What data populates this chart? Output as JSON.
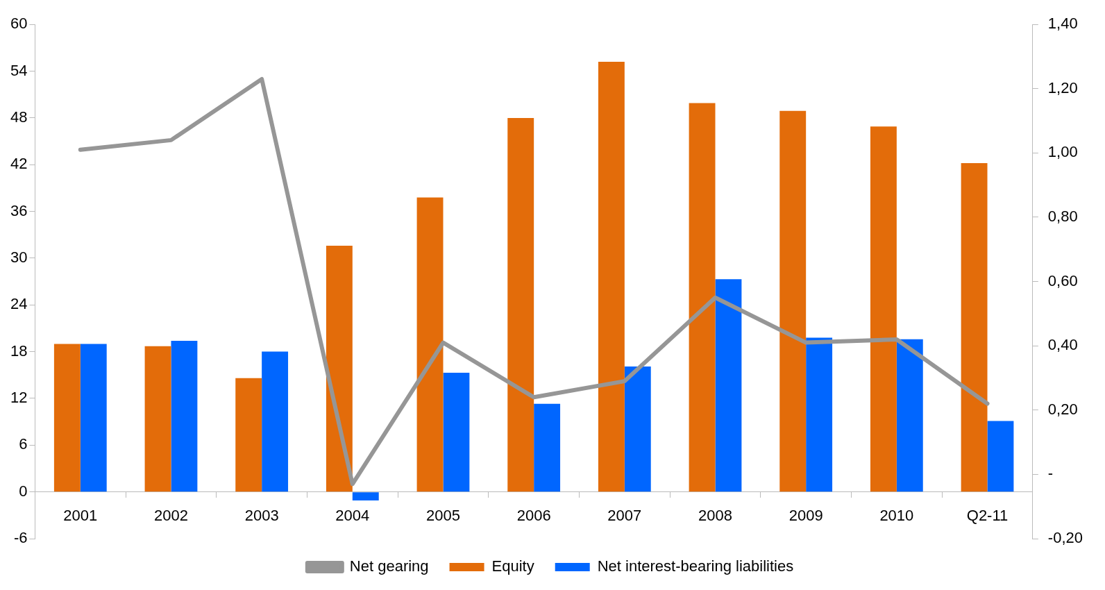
{
  "chart_data": {
    "type": "bar",
    "categories": [
      "2001",
      "2002",
      "2003",
      "2004",
      "2005",
      "2006",
      "2007",
      "2008",
      "2009",
      "2010",
      "Q2-11"
    ],
    "series": [
      {
        "name": "Equity",
        "color": "#e36c0a",
        "values": [
          19.0,
          18.7,
          14.6,
          31.6,
          37.8,
          48.0,
          55.2,
          49.9,
          48.9,
          46.9,
          42.2
        ]
      },
      {
        "name": "Net interest-bearing liabilities",
        "color": "#0066ff",
        "values": [
          19.0,
          19.4,
          18.0,
          -1.1,
          15.3,
          11.3,
          16.1,
          27.3,
          19.8,
          19.6,
          9.1
        ]
      },
      {
        "name": "Net gearing",
        "type": "line",
        "axis": "y2",
        "color": "#969696",
        "values": [
          1.01,
          1.04,
          1.23,
          -0.03,
          0.41,
          0.24,
          0.29,
          0.55,
          0.41,
          0.42,
          0.22
        ]
      }
    ],
    "ylim": [
      -6,
      60
    ],
    "yticks": [
      -6,
      0,
      6,
      12,
      18,
      24,
      30,
      36,
      42,
      48,
      54,
      60
    ],
    "y2lim": [
      -0.2,
      1.4
    ],
    "y2ticks": [
      {
        "value": -0.2,
        "label": "-0,20"
      },
      {
        "value": 0,
        "label": "-"
      },
      {
        "value": 0.2,
        "label": "0,20"
      },
      {
        "value": 0.4,
        "label": "0,40"
      },
      {
        "value": 0.6,
        "label": "0,60"
      },
      {
        "value": 0.8,
        "label": "0,80"
      },
      {
        "value": 1.0,
        "label": "1,00"
      },
      {
        "value": 1.2,
        "label": "1,20"
      },
      {
        "value": 1.4,
        "label": "1,40"
      }
    ],
    "grid": false,
    "legend": "bottom",
    "marker": "none",
    "line_style": "solid"
  }
}
